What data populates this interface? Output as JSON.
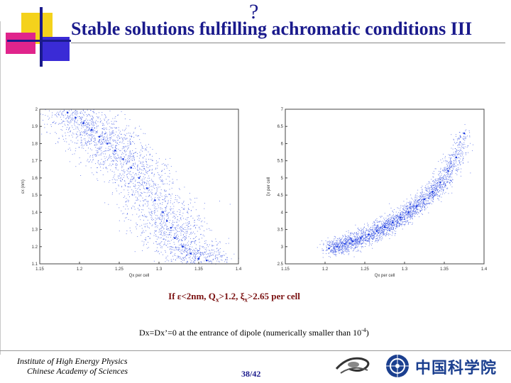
{
  "header": {
    "title": "Stable solutions fulfilling achromatic conditions III",
    "title_glyph": "?"
  },
  "colors": {
    "title": "#1a1a8c",
    "points": "#1f3de0",
    "condition": "#7a1010",
    "deco_yellow": "#f4d21c",
    "deco_pink": "#e0248c",
    "deco_blue": "#2b2bd6"
  },
  "chart_data": [
    {
      "type": "scatter",
      "title": "",
      "xlabel": "Qx per cell",
      "ylabel": "εx (nm)",
      "xlim": [
        1.15,
        1.4
      ],
      "ylim": [
        1.1,
        2
      ],
      "xticks": [
        "1.15",
        "1.2",
        "1.25",
        "1.3",
        "1.35",
        "1.4"
      ],
      "yticks": [
        "1.1",
        "1.2",
        "1.3",
        "1.4",
        "1.5",
        "1.6",
        "1.7",
        "1.8",
        "1.9",
        "2"
      ],
      "series": [
        {
          "x": [
            1.185,
            1.195,
            1.205,
            1.215,
            1.225,
            1.235,
            1.245,
            1.255,
            1.265,
            1.275,
            1.285,
            1.295,
            1.305,
            1.31,
            1.315,
            1.32,
            1.33,
            1.34,
            1.35,
            1.36
          ],
          "y": [
            1.98,
            1.95,
            1.92,
            1.88,
            1.84,
            1.8,
            1.76,
            1.71,
            1.66,
            1.6,
            1.54,
            1.47,
            1.4,
            1.35,
            1.31,
            1.25,
            1.2,
            1.16,
            1.13,
            1.12
          ]
        }
      ]
    },
    {
      "type": "scatter",
      "title": "",
      "xlabel": "Qx per cell",
      "ylabel": "ξx per cell",
      "xlim": [
        1.15,
        1.4
      ],
      "ylim": [
        2.5,
        7
      ],
      "xticks": [
        "1.15",
        "1.2",
        "1.25",
        "1.3",
        "1.35",
        "1.4"
      ],
      "yticks": [
        "2.5",
        "3",
        "3.5",
        "4",
        "4.5",
        "5",
        "5.5",
        "6",
        "6.5",
        "7"
      ],
      "series": [
        {
          "x": [
            1.205,
            1.215,
            1.225,
            1.235,
            1.245,
            1.255,
            1.265,
            1.275,
            1.285,
            1.295,
            1.305,
            1.315,
            1.325,
            1.335,
            1.345,
            1.355,
            1.365,
            1.375
          ],
          "y": [
            2.95,
            3.0,
            3.08,
            3.16,
            3.25,
            3.35,
            3.45,
            3.57,
            3.7,
            3.85,
            4.0,
            4.18,
            4.38,
            4.6,
            4.87,
            5.2,
            5.6,
            6.3
          ]
        }
      ]
    }
  ],
  "condition": {
    "prefix": "If ε",
    "part1": "<2nm, Q",
    "sub1": "x",
    "part2": ">1.2, ξ",
    "sub2": "x",
    "part3": ">2.65  per cell"
  },
  "note": {
    "text": "Dx=Dx’=0 at the entrance of dipole (numerically smaller than 10",
    "sup": "-4",
    "close": ")"
  },
  "footer": {
    "institute_line1": "Institute of High Energy Physics",
    "institute_line2": "Chinese Academy of Sciences",
    "page": "38/42",
    "cas_name": "中国科学院"
  }
}
